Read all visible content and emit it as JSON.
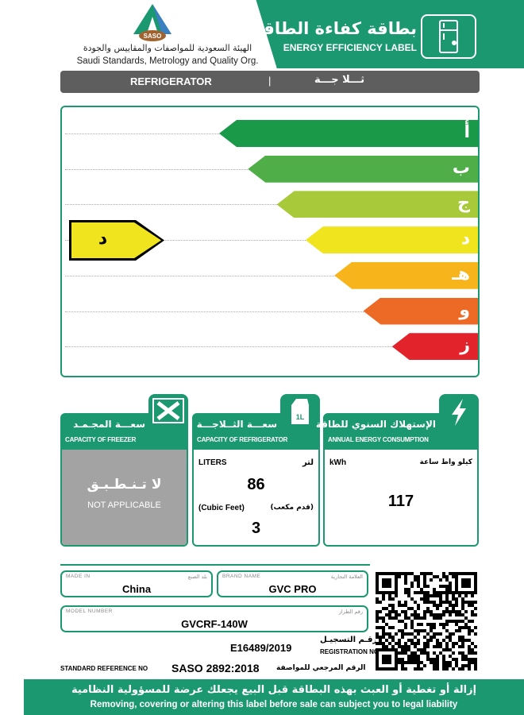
{
  "header": {
    "org_logo_text": "SASO",
    "org_name_ar": "الهيئة السعودية للمواصفات والمقاييس والجودة",
    "org_name_en": "Saudi Standards, Metrology and Quality Org.",
    "title_ar": "بطاقة كفاءة الطاقة",
    "title_en": "ENERGY EFFICIENCY LABEL",
    "icon": "refrigerator-icon"
  },
  "product_bar": {
    "en": "REFRIGERATOR",
    "separator": "|",
    "ar": "ثـــلا جـــة"
  },
  "scale": {
    "classes": [
      {
        "label": "أ",
        "color": "#1a9a48"
      },
      {
        "label": "ب",
        "color": "#4fae47"
      },
      {
        "label": "ج",
        "color": "#a7c93a"
      },
      {
        "label": "د",
        "color": "#f0e41e"
      },
      {
        "label": "هـ",
        "color": "#f7b41b"
      },
      {
        "label": "و",
        "color": "#ec6a25"
      },
      {
        "label": "ز",
        "color": "#e3232c"
      }
    ],
    "rating": "د",
    "rating_index": 3
  },
  "freezer": {
    "title_ar": "سعـــة المجـمـد",
    "title_en": "CAPACITY OF FREEZER",
    "value_ar": "لا تـنـطـبـق",
    "value_en": "NOT APPLICABLE",
    "icon": "expand-arrows-icon"
  },
  "fridge": {
    "title_ar": "سعـــة الثــلاجـــة",
    "title_en": "CAPACITY OF REFRIGERATOR",
    "liters_en": "LITERS",
    "liters_ar": "لتر",
    "liters": "86",
    "cubic_en": "(Cubic Feet)",
    "cubic_ar": "(قدم مكعب)",
    "cubic": "3",
    "icon": "milk-carton-icon",
    "icon_text": "1L"
  },
  "energy": {
    "title_ar": "الإستهلاك السنوي للطاقة",
    "title_en": "ANNUAL ENERGY CONSUMPTION",
    "unit_en": "kWh",
    "unit_ar": "كيلو واط ساعة",
    "value": "117",
    "icon": "lightning-icon"
  },
  "details": {
    "made_in_en": "MADE IN",
    "made_in_ar": "بلد الصنع",
    "made_in": "China",
    "brand_en": "BRAND NAME",
    "brand_ar": "العلامة التجارية",
    "brand": "GVC PRO",
    "model_en": "MODEL NUMBER",
    "model_ar": "رقم الطراز",
    "model": "GVCRF-140W",
    "reg": "E16489/2019",
    "reg_ar": "رقـم التسجيـل",
    "reg_en": "REGISTRATION NO",
    "std_en": "STANDARD REFERENCE NO",
    "std": "SASO 2892:2018",
    "std_ar": "الرقم المرجعي للمواصفة"
  },
  "footer": {
    "ar": "إزالة أو تغطية أو العبث بهذه البطاقة قبل البيع يجعلك عرضة للمسؤولية النظامية",
    "en": "Removing, covering or altering this label before sale can subject you to legal liability"
  }
}
